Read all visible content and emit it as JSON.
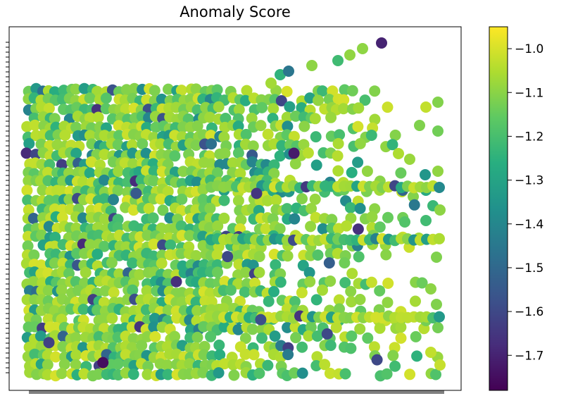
{
  "chart_data": {
    "type": "scatter",
    "title": "Anomaly Score",
    "xlabel": "",
    "ylabel": "",
    "grid": false,
    "x_tick_labels_visible": false,
    "y_tick_labels_visible": false,
    "color_scale": "viridis",
    "colorbar": {
      "vmin": -1.78,
      "vmax": -0.95,
      "ticks": [
        -1.0,
        -1.1,
        -1.2,
        -1.3,
        -1.4,
        -1.5,
        -1.6,
        -1.7
      ],
      "tick_labels": [
        "−1.0",
        "−1.1",
        "−1.2",
        "−1.3",
        "−1.4",
        "−1.5",
        "−1.6",
        "−1.7"
      ]
    },
    "highlight_points": [
      {
        "x": 0.64,
        "y": 0.78,
        "value": -1.72
      },
      {
        "x": 0.26,
        "y": 0.64,
        "value": -1.55
      },
      {
        "x": 0.55,
        "y": 0.64,
        "value": -1.65
      },
      {
        "x": 0.48,
        "y": 0.42,
        "value": -1.6
      },
      {
        "x": 0.05,
        "y": 0.12,
        "value": -1.62
      },
      {
        "x": 0.93,
        "y": 0.6,
        "value": -1.45
      },
      {
        "x": 0.56,
        "y": 0.2,
        "value": -1.58
      },
      {
        "x": 0.72,
        "y": 0.15,
        "value": -1.6
      },
      {
        "x": 0.18,
        "y": 0.05,
        "value": -1.75
      },
      {
        "x": 0.84,
        "y": 0.06,
        "value": -1.6
      }
    ]
  }
}
